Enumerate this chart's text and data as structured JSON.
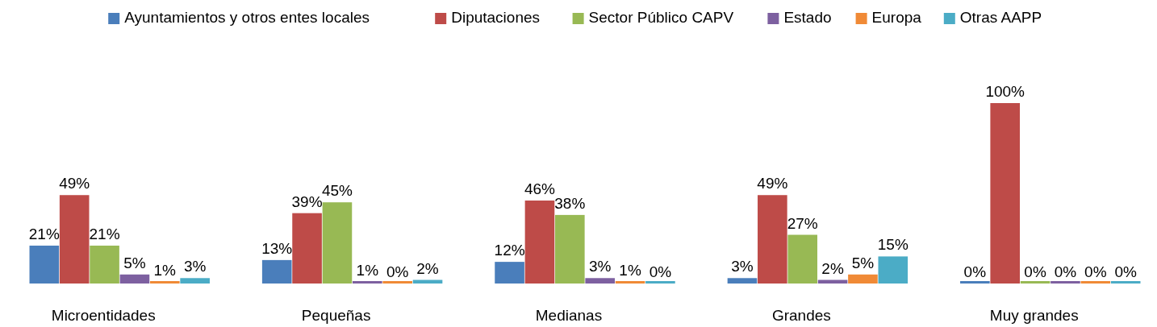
{
  "chart_data": {
    "type": "bar",
    "categories": [
      "Microentidades",
      "Pequeñas",
      "Medianas",
      "Grandes",
      "Muy grandes"
    ],
    "series": [
      {
        "name": "Ayuntamientos y otros entes locales",
        "color": "#4a7ebb",
        "values": [
          21,
          13,
          12,
          3,
          0
        ],
        "value_labels": [
          "21%",
          "13%",
          "12%",
          "3%",
          "0%"
        ]
      },
      {
        "name": "Diputaciones",
        "color": "#be4b48",
        "values": [
          49,
          39,
          46,
          49,
          100
        ],
        "value_labels": [
          "49%",
          "39%",
          "46%",
          "49%",
          "100%"
        ]
      },
      {
        "name": "Sector Público CAPV",
        "color": "#98b954",
        "values": [
          21,
          45,
          38,
          27,
          0
        ],
        "value_labels": [
          "21%",
          "45%",
          "38%",
          "27%",
          "0%"
        ]
      },
      {
        "name": "Estado",
        "color": "#7d60a0",
        "values": [
          5,
          1,
          3,
          2,
          0
        ],
        "value_labels": [
          "5%",
          "1%",
          "3%",
          "2%",
          "0%"
        ]
      },
      {
        "name": "Europa",
        "color": "#f08a36",
        "values": [
          1,
          0,
          1,
          5,
          0
        ],
        "value_labels": [
          "1%",
          "0%",
          "1%",
          "5%",
          "0%"
        ]
      },
      {
        "name": "Otras AAPP",
        "color": "#4bacc6",
        "values": [
          3,
          2,
          0,
          15,
          0
        ],
        "value_labels": [
          "3%",
          "2%",
          "0%",
          "15%",
          "0%"
        ]
      }
    ],
    "legend": "top"
  }
}
